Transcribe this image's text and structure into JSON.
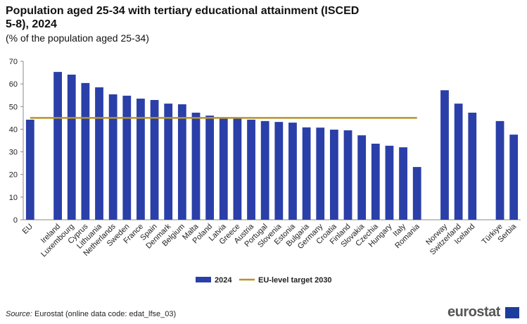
{
  "chart_data": {
    "type": "bar",
    "title": "Population aged 25-34 with tertiary educational attainment (ISCED 5-8), 2024",
    "subtitle": "(% of the population aged 25-34)",
    "categories": [
      "EU",
      null,
      "Ireland",
      "Luxembourg",
      "Cyprus",
      "Lithuania",
      "Netherlands",
      "Sweden",
      "France",
      "Spain",
      "Denmark",
      "Belgium",
      "Malta",
      "Poland",
      "Latvia",
      "Greece",
      "Austria",
      "Portugal",
      "Slovenia",
      "Estonia",
      "Bulgaria",
      "Germany",
      "Croatia",
      "Finland",
      "Slovakia",
      "Czechia",
      "Hungary",
      "Italy",
      "Romania",
      null,
      "Norway",
      "Switzerland",
      "Iceland",
      null,
      "Türkiye",
      "Serbia"
    ],
    "series": [
      {
        "name": "2024",
        "color": "#2a3fa8",
        "values": [
          44.2,
          null,
          65.3,
          64.1,
          60.4,
          58.5,
          55.4,
          54.8,
          53.5,
          52.9,
          51.3,
          51.0,
          47.3,
          46.0,
          45.1,
          44.8,
          44.2,
          43.6,
          43.2,
          42.9,
          40.8,
          40.7,
          39.8,
          39.5,
          37.3,
          33.6,
          32.7,
          32.0,
          23.3,
          null,
          57.2,
          51.3,
          47.3,
          null,
          43.6,
          37.6
        ]
      },
      {
        "name": "EU-level target 2030",
        "color": "#b8932a",
        "type": "line",
        "values": [
          45,
          45,
          45,
          45,
          45,
          45,
          45,
          45,
          45,
          45,
          45,
          45,
          45,
          45,
          45,
          45,
          45,
          45,
          45,
          45,
          45,
          45,
          45,
          45,
          45,
          45,
          45,
          45,
          45,
          null,
          null,
          null,
          null,
          null,
          null,
          null
        ]
      }
    ],
    "ylim": [
      0,
      70
    ],
    "yticks": [
      0,
      10,
      20,
      30,
      40,
      50,
      60,
      70
    ],
    "grid": false,
    "source_label": "Source:",
    "source": "Eurostat (online data code: edat_lfse_03)",
    "logo": "eurostat"
  }
}
